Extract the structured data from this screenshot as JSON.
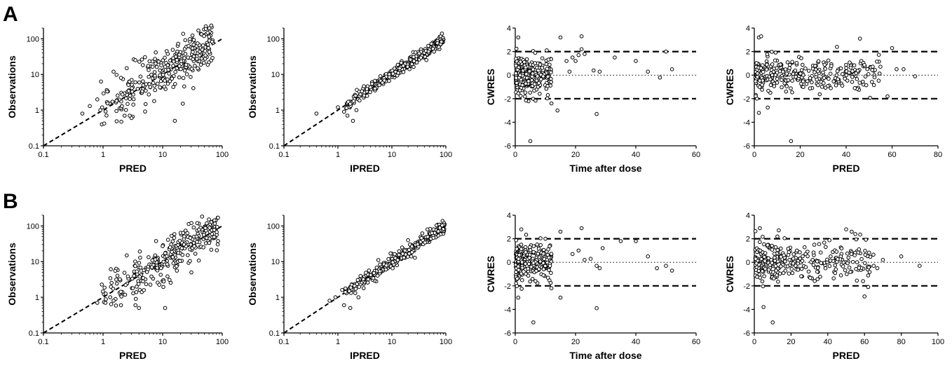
{
  "figure": {
    "rows": [
      {
        "label": "A"
      },
      {
        "label": "B"
      }
    ]
  },
  "chart_data": [
    {
      "id": "A-pred-obs",
      "row": "A",
      "type": "scatter",
      "xlabel": "PRED",
      "ylabel": "Observations",
      "xscale": "log",
      "yscale": "log",
      "xlim": [
        0.1,
        100
      ],
      "ylim": [
        0.1,
        200
      ],
      "xticks": [
        0.1,
        1,
        10,
        100
      ],
      "xticklabels": [
        "0.1",
        "1",
        "10",
        "100"
      ],
      "yticks": [
        0.1,
        1,
        10,
        100
      ],
      "yticklabels": [
        "0.1",
        "1",
        "10",
        "100"
      ],
      "reference_line": {
        "style": "dashed",
        "label": "identity",
        "points": [
          [
            0.1,
            0.1
          ],
          [
            100,
            100
          ]
        ]
      },
      "point_cloud": {
        "n": 300,
        "x_range": [
          0.8,
          70
        ],
        "spread_log10": 0.32,
        "bias_log10": 0.05,
        "seed": 11
      },
      "outliers": [
        [
          0.45,
          0.8
        ],
        [
          0.6,
          1.3
        ],
        [
          0.9,
          1.0
        ],
        [
          0.8,
          2.0
        ],
        [
          1.5,
          12
        ],
        [
          2.5,
          15
        ],
        [
          2.0,
          8
        ],
        [
          3.0,
          0.6
        ],
        [
          2.8,
          0.7
        ],
        [
          16,
          0.5
        ],
        [
          2.3,
          0.7
        ]
      ]
    },
    {
      "id": "A-ipred-obs",
      "row": "A",
      "type": "scatter",
      "xlabel": "IPRED",
      "ylabel": "Observations",
      "xscale": "log",
      "yscale": "log",
      "xlim": [
        0.1,
        100
      ],
      "ylim": [
        0.1,
        200
      ],
      "xticks": [
        0.1,
        1,
        10,
        100
      ],
      "xticklabels": [
        "0.1",
        "1",
        "10",
        "100"
      ],
      "yticks": [
        0.1,
        1,
        10,
        100
      ],
      "yticklabels": [
        "0.1",
        "1",
        "10",
        "100"
      ],
      "reference_line": {
        "style": "dashed",
        "label": "identity",
        "points": [
          [
            0.1,
            0.1
          ],
          [
            100,
            100
          ]
        ]
      },
      "point_cloud": {
        "n": 320,
        "x_range": [
          1.2,
          90
        ],
        "spread_log10": 0.08,
        "bias_log10": 0.0,
        "seed": 23
      },
      "outliers": [
        [
          0.4,
          0.8
        ],
        [
          1.0,
          1.2
        ],
        [
          1.5,
          0.7
        ],
        [
          1.9,
          0.5
        ],
        [
          2.2,
          1.0
        ],
        [
          1.3,
          0.9
        ],
        [
          1.7,
          1.5
        ]
      ]
    },
    {
      "id": "A-time-cwres",
      "row": "A",
      "type": "scatter",
      "xlabel": "Time after dose",
      "ylabel": "CWRES",
      "xscale": "linear",
      "yscale": "linear",
      "xlim": [
        0,
        60
      ],
      "ylim": [
        -6,
        4
      ],
      "xticks": [
        0,
        20,
        40,
        60
      ],
      "xticklabels": [
        "0",
        "20",
        "40",
        "60"
      ],
      "yticks": [
        -6,
        -4,
        -2,
        0,
        2,
        4
      ],
      "yticklabels": [
        "-6",
        "-4",
        "-2",
        "0",
        "2",
        "4"
      ],
      "reference_lines": [
        {
          "y": 2,
          "style": "dashed"
        },
        {
          "y": -2,
          "style": "dashed"
        },
        {
          "y": 0,
          "style": "dotted"
        }
      ],
      "point_cloud": {
        "n": 270,
        "x_range": [
          0.2,
          12
        ],
        "y_sd": 0.8,
        "x_skew": 1.8,
        "seed": 37
      },
      "outliers": [
        [
          5,
          -5.6
        ],
        [
          1,
          3.2
        ],
        [
          15,
          3.2
        ],
        [
          22,
          3.3
        ],
        [
          27,
          -3.3
        ],
        [
          14,
          -3
        ],
        [
          17,
          1.2
        ],
        [
          19,
          1.5
        ],
        [
          20,
          1.2
        ],
        [
          21,
          1.7
        ],
        [
          22,
          2.2
        ],
        [
          23,
          1.8
        ],
        [
          26,
          0.4
        ],
        [
          28,
          0.3
        ],
        [
          33,
          1.5
        ],
        [
          40,
          1.2
        ],
        [
          44,
          0.3
        ],
        [
          48,
          -0.2
        ],
        [
          50,
          2.0
        ],
        [
          52,
          0.5
        ],
        [
          12,
          -2.4
        ],
        [
          18,
          0.3
        ]
      ]
    },
    {
      "id": "A-pred-cwres",
      "row": "A",
      "type": "scatter",
      "xlabel": "PRED",
      "ylabel": "CWRES",
      "xscale": "linear",
      "yscale": "linear",
      "xlim": [
        0,
        80
      ],
      "ylim": [
        -6,
        4
      ],
      "xticks": [
        0,
        20,
        40,
        60,
        80
      ],
      "xticklabels": [
        "0",
        "20",
        "40",
        "60",
        "80"
      ],
      "yticks": [
        -6,
        -4,
        -2,
        0,
        2,
        4
      ],
      "yticklabels": [
        "-6",
        "-4",
        "-2",
        "0",
        "2",
        "4"
      ],
      "reference_lines": [
        {
          "y": 2,
          "style": "dashed"
        },
        {
          "y": -2,
          "style": "dashed"
        },
        {
          "y": 0,
          "style": "dotted"
        }
      ],
      "point_cloud": {
        "n": 300,
        "x_range": [
          0.5,
          55
        ],
        "y_sd": 0.75,
        "x_skew": 1.6,
        "seed": 41
      },
      "outliers": [
        [
          16,
          -5.6
        ],
        [
          2,
          3.2
        ],
        [
          3,
          3.3
        ],
        [
          46,
          3.1
        ],
        [
          36,
          2.4
        ],
        [
          60,
          2.3
        ],
        [
          62,
          0.5
        ],
        [
          65,
          0.5
        ],
        [
          70,
          -0.1
        ],
        [
          58,
          -1.8
        ],
        [
          2,
          -3.2
        ]
      ]
    },
    {
      "id": "B-pred-obs",
      "row": "B",
      "type": "scatter",
      "xlabel": "PRED",
      "ylabel": "Observations",
      "xscale": "log",
      "yscale": "log",
      "xlim": [
        0.1,
        100
      ],
      "ylim": [
        0.1,
        200
      ],
      "xticks": [
        0.1,
        1,
        10,
        100
      ],
      "xticklabels": [
        "0.1",
        "1",
        "10",
        "100"
      ],
      "yticks": [
        0.1,
        1,
        10,
        100
      ],
      "yticklabels": [
        "0.1",
        "1",
        "10",
        "100"
      ],
      "reference_line": {
        "style": "dashed",
        "label": "identity",
        "points": [
          [
            0.1,
            0.1
          ],
          [
            100,
            100
          ]
        ]
      },
      "point_cloud": {
        "n": 300,
        "x_range": [
          0.9,
          90
        ],
        "spread_log10": 0.28,
        "bias_log10": 0.02,
        "seed": 53
      },
      "outliers": [
        [
          0.8,
          0.7
        ],
        [
          1.1,
          0.7
        ],
        [
          1.5,
          0.8
        ],
        [
          2.0,
          0.6
        ],
        [
          3.5,
          0.6
        ],
        [
          4.0,
          0.5
        ],
        [
          11,
          0.5
        ],
        [
          2.5,
          15
        ],
        [
          1.6,
          5.5
        ]
      ]
    },
    {
      "id": "B-ipred-obs",
      "row": "B",
      "type": "scatter",
      "xlabel": "IPRED",
      "ylabel": "Observations",
      "xscale": "log",
      "yscale": "log",
      "xlim": [
        0.1,
        100
      ],
      "ylim": [
        0.1,
        200
      ],
      "xticks": [
        0.1,
        1,
        10,
        100
      ],
      "xticklabels": [
        "0.1",
        "1",
        "10",
        "100"
      ],
      "yticks": [
        0.1,
        1,
        10,
        100
      ],
      "yticklabels": [
        "0.1",
        "1",
        "10",
        "100"
      ],
      "reference_line": {
        "style": "dashed",
        "label": "identity",
        "points": [
          [
            0.1,
            0.1
          ],
          [
            100,
            100
          ]
        ]
      },
      "point_cloud": {
        "n": 320,
        "x_range": [
          1.2,
          95
        ],
        "spread_log10": 0.09,
        "bias_log10": 0.0,
        "seed": 67
      },
      "outliers": [
        [
          0.7,
          0.8
        ],
        [
          0.9,
          1.0
        ],
        [
          1.3,
          0.6
        ],
        [
          1.7,
          0.5
        ],
        [
          1.2,
          1.6
        ],
        [
          2.4,
          1.0
        ],
        [
          3.0,
          1.8
        ]
      ]
    },
    {
      "id": "B-time-cwres",
      "row": "B",
      "type": "scatter",
      "xlabel": "Time after dose",
      "ylabel": "CWRES",
      "xscale": "linear",
      "yscale": "linear",
      "xlim": [
        0,
        60
      ],
      "ylim": [
        -6,
        4
      ],
      "xticks": [
        0,
        20,
        40,
        60
      ],
      "xticklabels": [
        "0",
        "20",
        "40",
        "60"
      ],
      "yticks": [
        -6,
        -4,
        -2,
        0,
        2,
        4
      ],
      "yticklabels": [
        "-6",
        "-4",
        "-2",
        "0",
        "2",
        "4"
      ],
      "reference_lines": [
        {
          "y": 2,
          "style": "dashed"
        },
        {
          "y": -2,
          "style": "dashed"
        },
        {
          "y": 0,
          "style": "dotted"
        }
      ],
      "point_cloud": {
        "n": 270,
        "x_range": [
          0.2,
          12
        ],
        "y_sd": 0.8,
        "x_skew": 1.8,
        "seed": 79
      },
      "outliers": [
        [
          6,
          -5.1
        ],
        [
          1,
          -3.0
        ],
        [
          2,
          2.8
        ],
        [
          15,
          -3.0
        ],
        [
          22,
          2.9
        ],
        [
          27,
          -3.9
        ],
        [
          15,
          2.6
        ],
        [
          19,
          0.7
        ],
        [
          21,
          1.0
        ],
        [
          23,
          0.2
        ],
        [
          25,
          0.3
        ],
        [
          27,
          -0.3
        ],
        [
          28,
          -0.5
        ],
        [
          29,
          1.2
        ],
        [
          35,
          1.8
        ],
        [
          40,
          1.8
        ],
        [
          44,
          0.5
        ],
        [
          47,
          -0.5
        ],
        [
          50,
          -0.3
        ],
        [
          52,
          -0.7
        ],
        [
          12,
          -2.2
        ],
        [
          10,
          2.0
        ]
      ]
    },
    {
      "id": "B-pred-cwres",
      "row": "B",
      "type": "scatter",
      "xlabel": "PRED",
      "ylabel": "CWRES",
      "xscale": "linear",
      "yscale": "linear",
      "xlim": [
        0,
        100
      ],
      "ylim": [
        -6,
        4
      ],
      "xticks": [
        0,
        20,
        40,
        60,
        80,
        100
      ],
      "xticklabels": [
        "0",
        "20",
        "40",
        "60",
        "80",
        "100"
      ],
      "yticks": [
        -6,
        -4,
        -2,
        0,
        2,
        4
      ],
      "yticklabels": [
        "-6",
        "-4",
        "-2",
        "0",
        "2",
        "4"
      ],
      "reference_lines": [
        {
          "y": 2,
          "style": "dashed"
        },
        {
          "y": -2,
          "style": "dashed"
        },
        {
          "y": 0,
          "style": "dotted"
        }
      ],
      "point_cloud": {
        "n": 300,
        "x_range": [
          0.5,
          65
        ],
        "y_sd": 0.8,
        "x_skew": 1.5,
        "seed": 97
      },
      "outliers": [
        [
          10,
          -5.1
        ],
        [
          5,
          -3.8
        ],
        [
          3,
          2.9
        ],
        [
          50,
          2.8
        ],
        [
          53,
          2.6
        ],
        [
          55,
          2.4
        ],
        [
          60,
          -2.9
        ],
        [
          62,
          -2.1
        ],
        [
          65,
          -0.3
        ],
        [
          67,
          -0.5
        ],
        [
          70,
          0.2
        ],
        [
          80,
          0.5
        ],
        [
          90,
          -0.3
        ],
        [
          57,
          1.1
        ]
      ]
    }
  ]
}
